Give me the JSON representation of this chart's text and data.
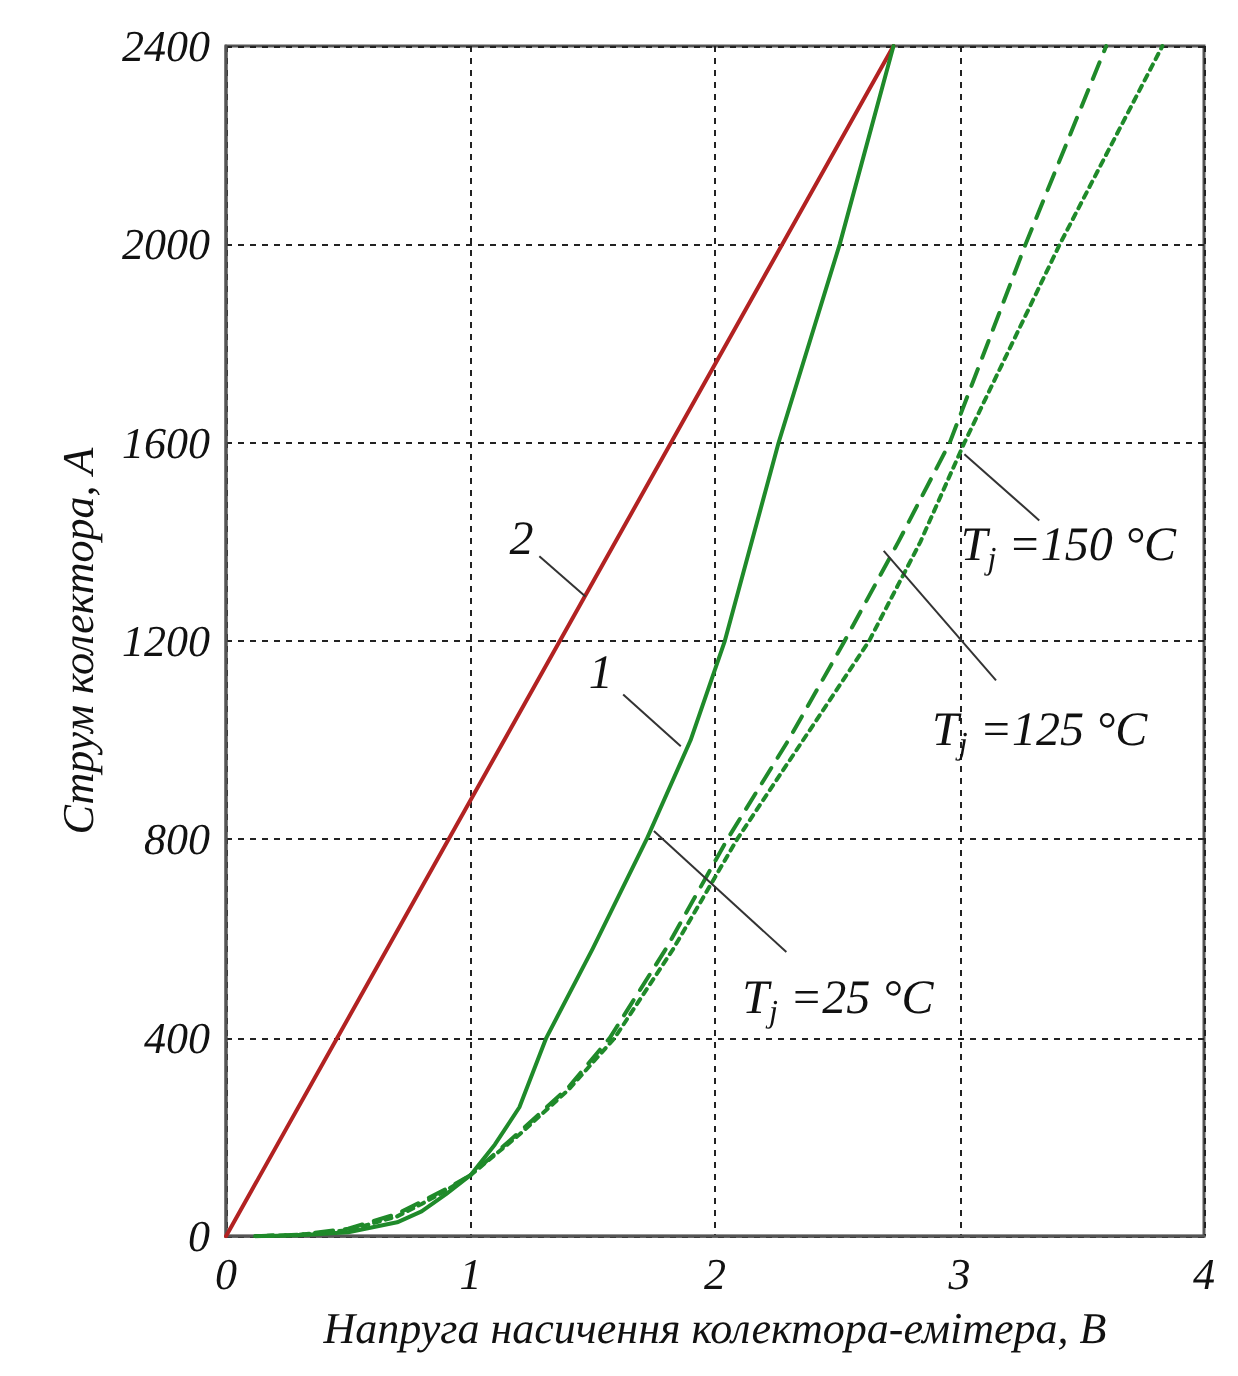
{
  "chart_data": {
    "type": "line",
    "xlabel": "Напруга насичення колектора-емітера, В",
    "ylabel": "Струм колектора, А",
    "xlim": [
      0,
      4
    ],
    "xticks": [
      0,
      1,
      2,
      3,
      4
    ],
    "ylim": [
      0,
      2400
    ],
    "yticks": [
      0,
      400,
      800,
      1200,
      1600,
      2000,
      2400
    ],
    "grid": true,
    "marker": "none",
    "series": [
      {
        "color": "#b22222",
        "line_style": "solid",
        "x": [
          0,
          2.73
        ],
        "values": [
          0,
          2400
        ]
      },
      {
        "color": "#1f8a2a",
        "line_style": "solid",
        "x": [
          0.12,
          0.3,
          0.5,
          0.7,
          0.8,
          0.9,
          1.0,
          1.1,
          1.2,
          1.31,
          1.5,
          1.72,
          1.9,
          2.04,
          2.26,
          2.51,
          2.73
        ],
        "values": [
          0,
          2,
          8,
          28,
          50,
          85,
          123,
          185,
          260,
          400,
          580,
          800,
          1000,
          1200,
          1600,
          2000,
          2400
        ]
      },
      {
        "color": "#1f8a2a",
        "line_style": "dashed",
        "x": [
          0.12,
          0.3,
          0.5,
          0.7,
          0.8,
          0.9,
          1.0,
          1.2,
          1.4,
          1.57,
          1.8,
          2.05,
          2.3,
          2.53,
          2.75,
          2.96,
          3.27,
          3.6
        ],
        "values": [
          0,
          3,
          15,
          45,
          70,
          95,
          123,
          210,
          300,
          400,
          580,
          800,
          1000,
          1200,
          1400,
          1600,
          2000,
          2400
        ]
      },
      {
        "color": "#1f8a2a",
        "line_style": "dotted",
        "x": [
          0.12,
          0.3,
          0.5,
          0.7,
          0.8,
          0.9,
          1.0,
          1.2,
          1.4,
          1.59,
          1.83,
          2.09,
          2.36,
          2.63,
          2.84,
          3.02,
          3.41,
          3.83
        ],
        "values": [
          0,
          3,
          12,
          40,
          65,
          92,
          123,
          205,
          295,
          400,
          580,
          800,
          1000,
          1200,
          1400,
          1600,
          2000,
          2400
        ]
      }
    ],
    "annotations": [
      {
        "text": "2",
        "x": 1.47,
        "y": 1290
      },
      {
        "text": "1",
        "x": 1.86,
        "y": 988
      },
      {
        "text": "T$_{j}$ =25 °C",
        "x": 1.75,
        "y": 817
      },
      {
        "text": "T$_{j}$ =125 °C",
        "x": 2.69,
        "y": 1382
      },
      {
        "text": "T$_{j}$ =150 °C",
        "x": 3.02,
        "y": 1577
      }
    ]
  }
}
